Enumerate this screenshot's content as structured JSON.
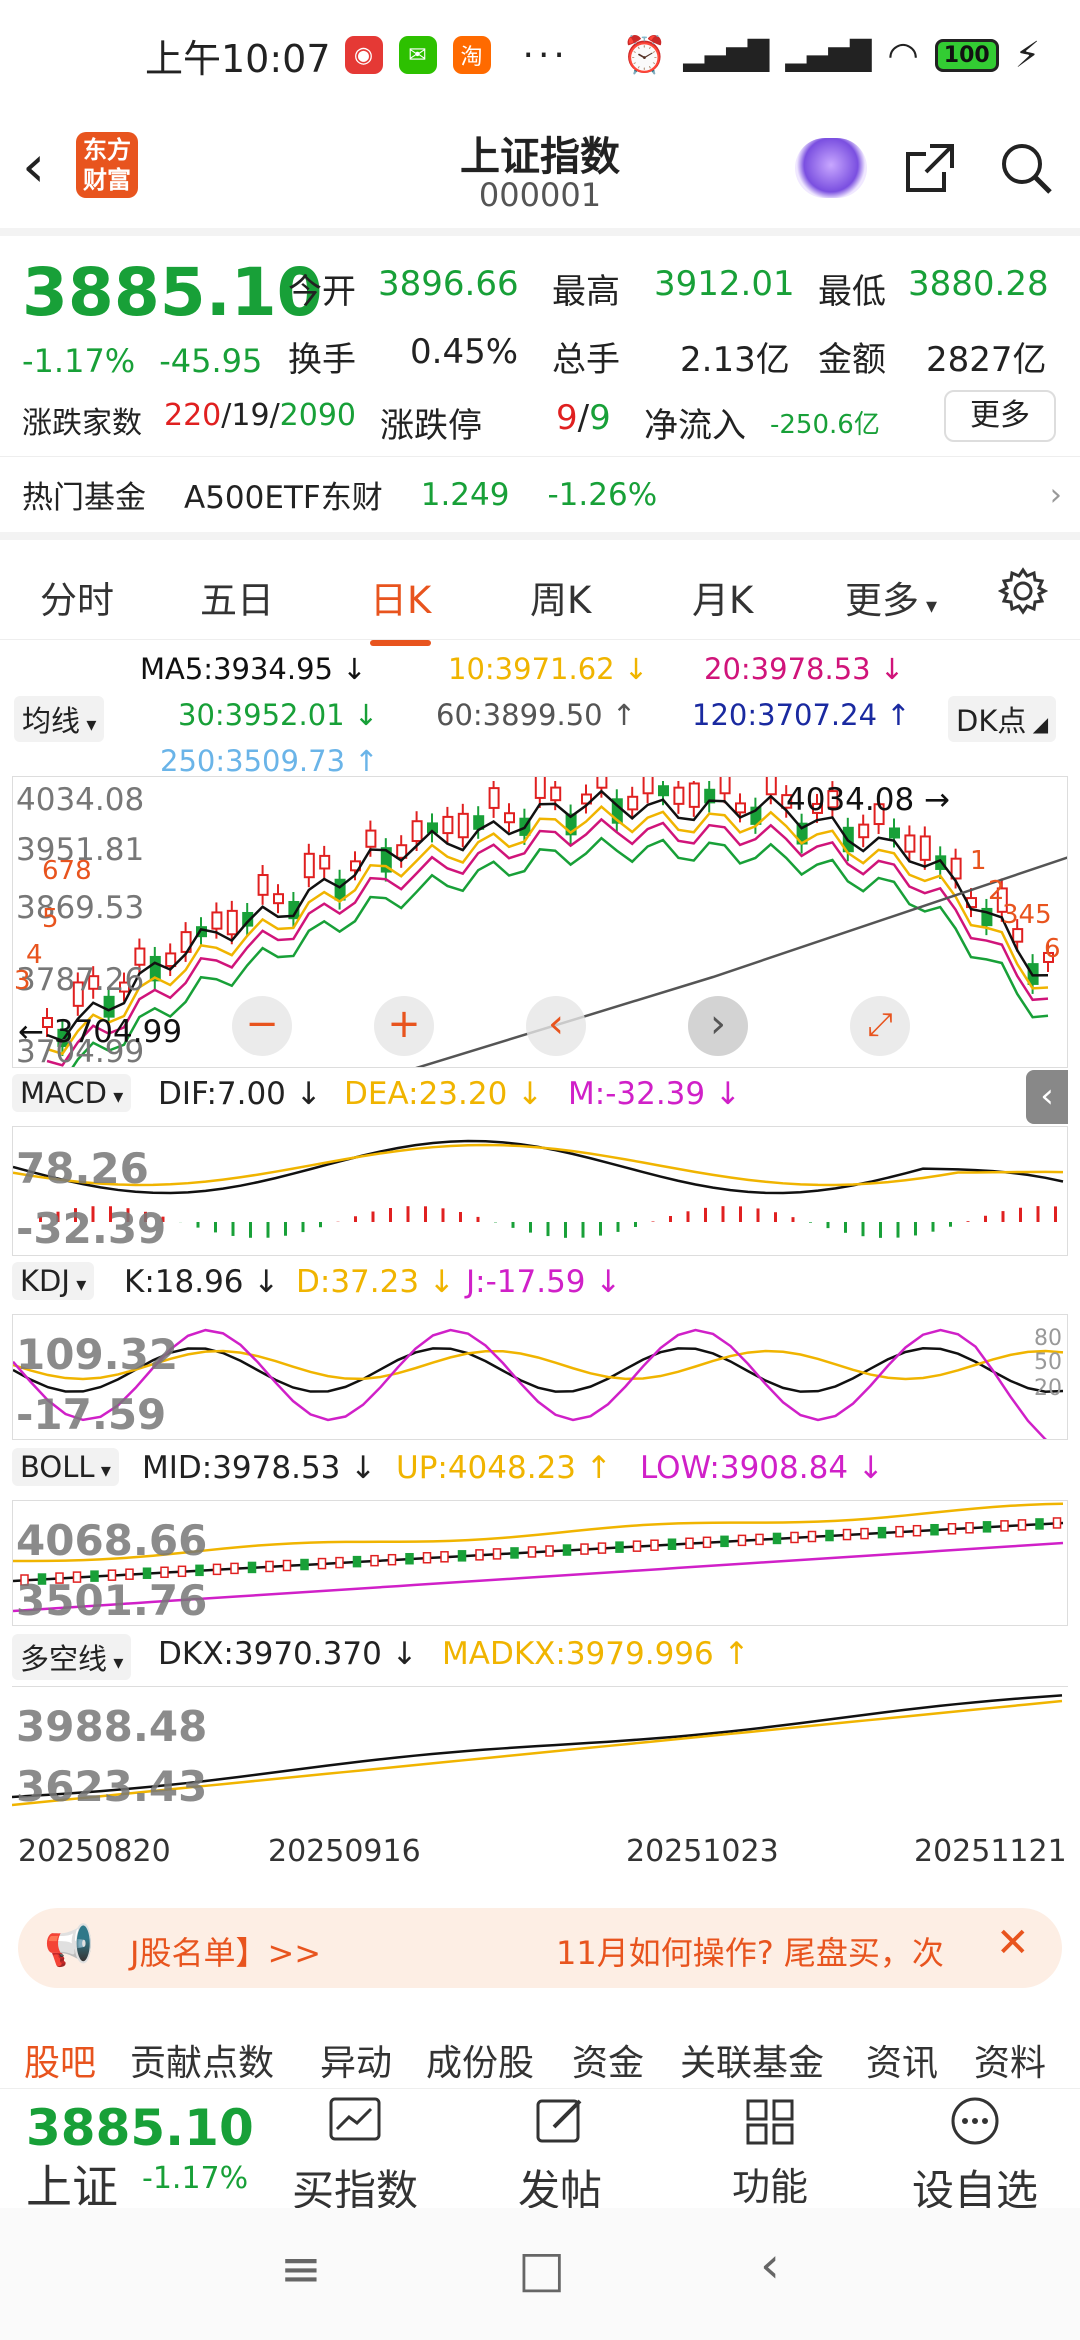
{
  "status": {
    "time": "上午10:07",
    "dots": "···",
    "battery": "100"
  },
  "header": {
    "brand": "东方\n财富",
    "title": "上证指数",
    "code": "000001"
  },
  "quote": {
    "price": "3885.10",
    "pct": "-1.17%",
    "chg": "-45.95",
    "open_label": "今开",
    "open": "3896.66",
    "high_label": "最高",
    "high": "3912.01",
    "low_label": "最低",
    "low": "3880.28",
    "turn_label": "换手",
    "turn": "0.45%",
    "vol_label": "总手",
    "vol": "2.13亿",
    "amt_label": "金额",
    "amt": "2827亿",
    "breadth_label": "涨跌家数",
    "up": "220",
    "flat": "19",
    "down": "2090",
    "limit_label": "涨跌停",
    "limit_up": "9",
    "limit_down": "9",
    "inflow_label": "净流入",
    "inflow": "-250.6亿",
    "more": "更多"
  },
  "hotfund": {
    "label": "热门基金",
    "name": "A500ETF东财",
    "price": "1.249",
    "pct": "-1.26%"
  },
  "tabs": [
    "分时",
    "五日",
    "日K",
    "周K",
    "月K",
    "更多"
  ],
  "ma": {
    "selector": "均线",
    "ma5": "MA5:3934.95 ↓",
    "ma10": "10:3971.62 ↓",
    "ma20": "20:3978.53 ↓",
    "ma30": "30:3952.01 ↓",
    "ma60": "60:3899.50 ↑",
    "ma120": "120:3707.24 ↑",
    "ma250": "250:3509.73 ↑",
    "dk": "DK点"
  },
  "kline": {
    "axis": [
      "4034.08",
      "3951.81",
      "3869.53",
      "3787.26",
      "3704.99"
    ],
    "high_mark": "4034.08",
    "low_mark": "3704.99",
    "signals": [
      "678",
      "5",
      "4",
      "3",
      "1",
      "2",
      "345",
      "6"
    ]
  },
  "macd": {
    "label": "MACD",
    "dif": "DIF:7.00 ↓",
    "dea": "DEA:23.20 ↓",
    "m": "M:-32.39 ↓",
    "top": "78.26",
    "bot": "-32.39"
  },
  "kdj": {
    "label": "KDJ",
    "k": "K:18.96 ↓",
    "d": "D:37.23 ↓",
    "j": "J:-17.59 ↓",
    "top": "109.32",
    "bot": "-17.59",
    "lv": [
      "80",
      "50",
      "20"
    ]
  },
  "boll": {
    "label": "BOLL",
    "mid": "MID:3978.53 ↓",
    "up": "UP:4048.23 ↑",
    "low": "LOW:3908.84 ↓",
    "top": "4068.66",
    "bot": "3501.76"
  },
  "dkx": {
    "label": "多空线",
    "dkx": "DKX:3970.370 ↓",
    "madkx": "MADKX:3979.996 ↑",
    "top": "3988.48",
    "bot": "3623.43"
  },
  "dates": [
    "20250820",
    "20250916",
    "20251023",
    "20251121"
  ],
  "banner": {
    "left": "J股名单】>>",
    "right": "11月如何操作? 尾盘买，次"
  },
  "subtabs": [
    "股吧",
    "贡献点数",
    "异动",
    "成份股",
    "资金",
    "关联基金",
    "资讯",
    "资料"
  ],
  "bottom": {
    "price": "3885.10",
    "name": "上证",
    "pct": "-1.17%",
    "buy": "买指数",
    "post": "发帖",
    "func": "功能",
    "watch": "设自选"
  },
  "colors": {
    "up": "#e02020",
    "down": "#18a038",
    "accent": "#e8541e",
    "ma5": "#111111",
    "ma10": "#f0b400",
    "ma20": "#d0147a",
    "ma30": "#18a038",
    "ma60": "#555555"
  }
}
